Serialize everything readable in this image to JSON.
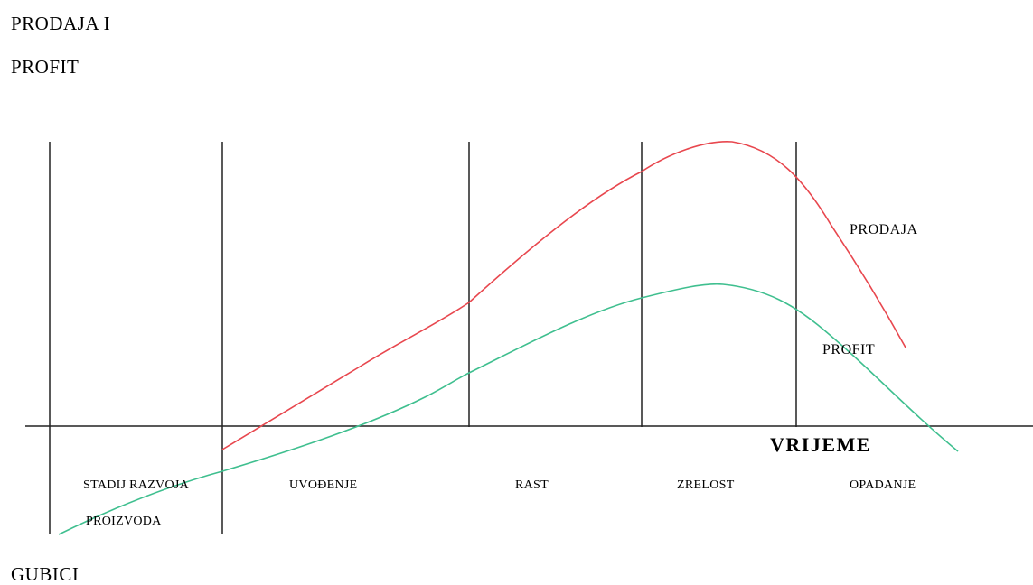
{
  "y_axis_label_top": "PRODAJA I",
  "y_axis_label_bottom": "PROFIT",
  "negative_label": "GUBICI",
  "x_axis_label": "VRIJEME",
  "stages": {
    "development_line1": "STADIJ RAZVOJA",
    "development_line2": "PROIZVODA",
    "introduction": "UVOĐENJE",
    "growth": "RAST",
    "maturity": "ZRELOST",
    "decline": "OPADANJE"
  },
  "curves": {
    "sales": {
      "label": "PRODAJA",
      "color": "#e8474e"
    },
    "profit": {
      "label": "PROFIT",
      "color": "#3fbf8f"
    }
  }
}
